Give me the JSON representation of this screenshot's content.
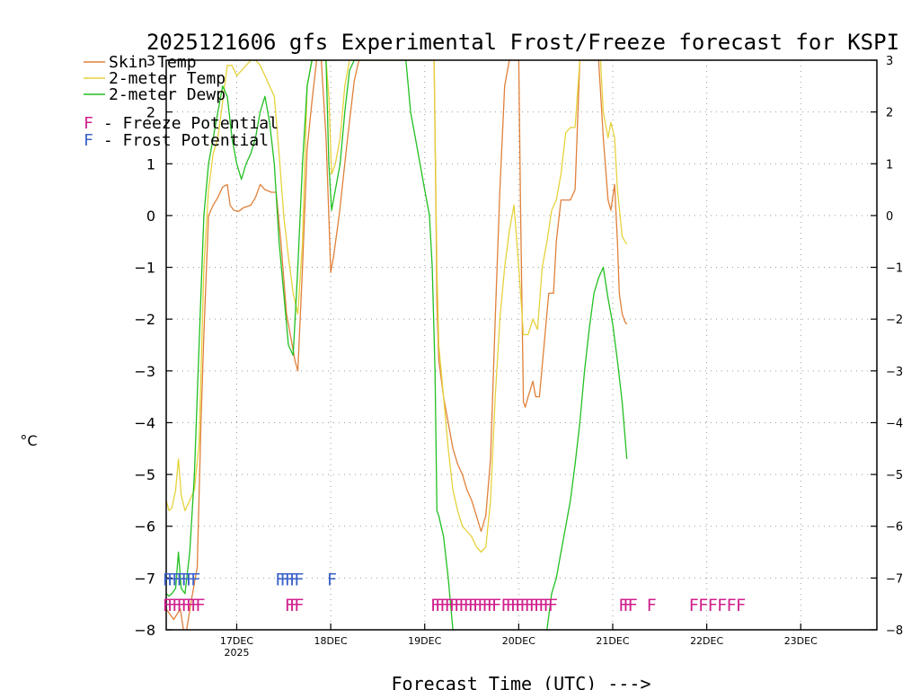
{
  "chart_data": {
    "type": "line",
    "title": "2025121606 gfs Experimental Frost/Freeze forecast for KSPI",
    "xlabel": "Forecast Time (UTC) --->",
    "ylabel": "°C",
    "ylim": [
      -8,
      3
    ],
    "xlim": [
      0,
      7.56
    ],
    "x_unit": "days since 16DEC 06Z",
    "yticks": [
      -8,
      -7,
      -6,
      -5,
      -4,
      -3,
      -2,
      -1,
      0,
      1,
      2,
      3
    ],
    "ytick_labels": [
      "−8",
      "−7",
      "−6",
      "−5",
      "−4",
      "−3",
      "−2",
      "−1",
      "0",
      "1",
      "2",
      "3"
    ],
    "xticks": [
      {
        "x": 0.75,
        "label": "17DEC",
        "sublabel": "2025"
      },
      {
        "x": 1.75,
        "label": "18DEC",
        "sublabel": ""
      },
      {
        "x": 2.75,
        "label": "19DEC",
        "sublabel": ""
      },
      {
        "x": 3.75,
        "label": "20DEC",
        "sublabel": ""
      },
      {
        "x": 4.75,
        "label": "21DEC",
        "sublabel": ""
      },
      {
        "x": 5.75,
        "label": "22DEC",
        "sublabel": ""
      },
      {
        "x": 6.75,
        "label": "23DEC",
        "sublabel": ""
      }
    ],
    "grid": true,
    "legend_position": "top-left",
    "colors": {
      "skin": "#e0803a",
      "temp2m": "#e6d23c",
      "dewp2m": "#22c022",
      "freeze": "#d0208c",
      "frost": "#3a62c8"
    },
    "series": [
      {
        "name": "Skin Temp",
        "key": "skin",
        "points": [
          [
            0.0,
            -7.6
          ],
          [
            0.08,
            -7.8
          ],
          [
            0.15,
            -7.6
          ],
          [
            0.2,
            -8.2
          ],
          [
            0.27,
            -7.4
          ],
          [
            0.33,
            -6.8
          ],
          [
            0.37,
            -4.0
          ],
          [
            0.4,
            -2.3
          ],
          [
            0.45,
            0.0
          ],
          [
            0.5,
            0.2
          ],
          [
            0.55,
            0.35
          ],
          [
            0.6,
            0.55
          ],
          [
            0.65,
            0.6
          ],
          [
            0.68,
            0.2
          ],
          [
            0.72,
            0.1
          ],
          [
            0.77,
            0.08
          ],
          [
            0.82,
            0.15
          ],
          [
            0.9,
            0.2
          ],
          [
            0.95,
            0.35
          ],
          [
            1.0,
            0.6
          ],
          [
            1.05,
            0.5
          ],
          [
            1.12,
            0.45
          ],
          [
            1.17,
            0.45
          ],
          [
            1.22,
            -0.5
          ],
          [
            1.28,
            -1.9
          ],
          [
            1.33,
            -2.4
          ],
          [
            1.37,
            -2.8
          ],
          [
            1.4,
            -3.0
          ],
          [
            1.45,
            -1.0
          ],
          [
            1.5,
            1.3
          ],
          [
            1.55,
            2.2
          ],
          [
            1.6,
            3.0
          ],
          [
            1.65,
            3.0
          ],
          [
            1.7,
            1.5
          ],
          [
            1.73,
            0.0
          ],
          [
            1.75,
            -1.1
          ],
          [
            1.78,
            -0.8
          ],
          [
            1.84,
            0.0
          ],
          [
            1.93,
            1.5
          ],
          [
            2.0,
            2.6
          ],
          [
            2.05,
            3.0
          ],
          [
            2.8,
            3.0
          ],
          [
            2.85,
            3.0
          ],
          [
            2.87,
            0.0
          ],
          [
            2.88,
            -1.7
          ],
          [
            2.9,
            -2.8
          ],
          [
            2.95,
            -3.5
          ],
          [
            3.0,
            -4.0
          ],
          [
            3.05,
            -4.5
          ],
          [
            3.1,
            -4.8
          ],
          [
            3.15,
            -5.0
          ],
          [
            3.2,
            -5.3
          ],
          [
            3.25,
            -5.5
          ],
          [
            3.3,
            -5.8
          ],
          [
            3.35,
            -6.1
          ],
          [
            3.4,
            -5.8
          ],
          [
            3.45,
            -4.7
          ],
          [
            3.5,
            -2.0
          ],
          [
            3.55,
            0.5
          ],
          [
            3.6,
            2.5
          ],
          [
            3.65,
            3.0
          ],
          [
            3.72,
            3.0
          ],
          [
            3.75,
            3.0
          ],
          [
            3.77,
            0.0
          ],
          [
            3.8,
            -3.6
          ],
          [
            3.82,
            -3.7
          ],
          [
            3.85,
            -3.5
          ],
          [
            3.9,
            -3.2
          ],
          [
            3.93,
            -3.5
          ],
          [
            3.97,
            -3.5
          ],
          [
            4.02,
            -2.5
          ],
          [
            4.07,
            -1.5
          ],
          [
            4.12,
            -1.5
          ],
          [
            4.15,
            -0.5
          ],
          [
            4.2,
            0.3
          ],
          [
            4.25,
            0.3
          ],
          [
            4.3,
            0.3
          ],
          [
            4.35,
            0.5
          ],
          [
            4.4,
            3.0
          ],
          [
            4.6,
            3.0
          ],
          [
            4.65,
            1.5
          ],
          [
            4.7,
            0.3
          ],
          [
            4.73,
            0.1
          ],
          [
            4.77,
            0.6
          ],
          [
            4.8,
            -0.5
          ],
          [
            4.82,
            -1.5
          ],
          [
            4.85,
            -1.9
          ],
          [
            4.88,
            -2.05
          ],
          [
            4.9,
            -2.1
          ]
        ]
      },
      {
        "name": "2-meter Temp",
        "key": "temp2m",
        "points": [
          [
            0.0,
            -5.5
          ],
          [
            0.03,
            -5.7
          ],
          [
            0.06,
            -5.65
          ],
          [
            0.1,
            -5.3
          ],
          [
            0.13,
            -4.7
          ],
          [
            0.16,
            -5.4
          ],
          [
            0.2,
            -5.7
          ],
          [
            0.25,
            -5.5
          ],
          [
            0.3,
            -5.3
          ],
          [
            0.35,
            -4.4
          ],
          [
            0.4,
            -1.0
          ],
          [
            0.45,
            0.5
          ],
          [
            0.5,
            1.2
          ],
          [
            0.55,
            1.5
          ],
          [
            0.6,
            2.2
          ],
          [
            0.65,
            2.9
          ],
          [
            0.7,
            2.9
          ],
          [
            0.75,
            2.7
          ],
          [
            0.85,
            2.9
          ],
          [
            0.9,
            3.0
          ],
          [
            0.95,
            3.0
          ],
          [
            1.0,
            2.9
          ],
          [
            1.05,
            2.7
          ],
          [
            1.1,
            2.5
          ],
          [
            1.15,
            2.3
          ],
          [
            1.2,
            1.2
          ],
          [
            1.25,
            0.0
          ],
          [
            1.3,
            -0.8
          ],
          [
            1.35,
            -1.5
          ],
          [
            1.4,
            -1.9
          ],
          [
            1.45,
            -0.5
          ],
          [
            1.5,
            2.5
          ],
          [
            1.55,
            3.0
          ],
          [
            1.7,
            3.0
          ],
          [
            1.73,
            2.3
          ],
          [
            1.76,
            0.8
          ],
          [
            1.8,
            1.0
          ],
          [
            1.85,
            1.5
          ],
          [
            1.9,
            2.5
          ],
          [
            1.95,
            3.0
          ],
          [
            2.85,
            3.0
          ],
          [
            2.88,
            -1.0
          ],
          [
            2.9,
            -2.5
          ],
          [
            2.95,
            -3.5
          ],
          [
            3.0,
            -4.5
          ],
          [
            3.05,
            -5.3
          ],
          [
            3.1,
            -5.7
          ],
          [
            3.15,
            -6.0
          ],
          [
            3.2,
            -6.1
          ],
          [
            3.25,
            -6.2
          ],
          [
            3.3,
            -6.4
          ],
          [
            3.35,
            -6.5
          ],
          [
            3.4,
            -6.4
          ],
          [
            3.45,
            -5.5
          ],
          [
            3.5,
            -3.5
          ],
          [
            3.55,
            -2.0
          ],
          [
            3.6,
            -1.0
          ],
          [
            3.65,
            -0.3
          ],
          [
            3.7,
            0.2
          ],
          [
            3.75,
            -1.0
          ],
          [
            3.8,
            -2.3
          ],
          [
            3.85,
            -2.3
          ],
          [
            3.9,
            -2.0
          ],
          [
            3.95,
            -2.2
          ],
          [
            4.0,
            -1.0
          ],
          [
            4.05,
            -0.5
          ],
          [
            4.1,
            0.1
          ],
          [
            4.15,
            0.3
          ],
          [
            4.2,
            0.8
          ],
          [
            4.25,
            1.6
          ],
          [
            4.3,
            1.7
          ],
          [
            4.35,
            1.7
          ],
          [
            4.4,
            3.0
          ],
          [
            4.62,
            3.0
          ],
          [
            4.65,
            2.0
          ],
          [
            4.7,
            1.5
          ],
          [
            4.73,
            1.8
          ],
          [
            4.77,
            1.5
          ],
          [
            4.8,
            0.5
          ],
          [
            4.85,
            -0.4
          ],
          [
            4.88,
            -0.5
          ],
          [
            4.9,
            -0.55
          ]
        ]
      },
      {
        "name": "2-meter Dewp",
        "key": "dewp2m",
        "points": [
          [
            0.0,
            -7.3
          ],
          [
            0.03,
            -7.35
          ],
          [
            0.06,
            -7.3
          ],
          [
            0.1,
            -7.2
          ],
          [
            0.13,
            -6.5
          ],
          [
            0.16,
            -7.2
          ],
          [
            0.2,
            -7.3
          ],
          [
            0.25,
            -6.5
          ],
          [
            0.3,
            -5.0
          ],
          [
            0.33,
            -3.5
          ],
          [
            0.37,
            -1.5
          ],
          [
            0.4,
            0.0
          ],
          [
            0.45,
            1.0
          ],
          [
            0.5,
            1.5
          ],
          [
            0.55,
            2.0
          ],
          [
            0.6,
            2.5
          ],
          [
            0.65,
            2.3
          ],
          [
            0.7,
            1.5
          ],
          [
            0.75,
            1.0
          ],
          [
            0.8,
            0.7
          ],
          [
            0.85,
            1.0
          ],
          [
            0.9,
            1.2
          ],
          [
            0.95,
            1.5
          ],
          [
            1.0,
            2.0
          ],
          [
            1.05,
            2.3
          ],
          [
            1.1,
            1.8
          ],
          [
            1.15,
            1.0
          ],
          [
            1.2,
            -0.5
          ],
          [
            1.25,
            -1.5
          ],
          [
            1.3,
            -2.5
          ],
          [
            1.35,
            -2.7
          ],
          [
            1.4,
            -1.0
          ],
          [
            1.45,
            1.0
          ],
          [
            1.5,
            2.5
          ],
          [
            1.55,
            3.0
          ],
          [
            1.7,
            3.0
          ],
          [
            1.73,
            1.0
          ],
          [
            1.76,
            0.1
          ],
          [
            1.8,
            0.5
          ],
          [
            1.85,
            1.0
          ],
          [
            1.9,
            2.0
          ],
          [
            1.95,
            2.8
          ],
          [
            2.0,
            3.0
          ],
          [
            2.55,
            3.0
          ],
          [
            2.6,
            2.0
          ],
          [
            2.65,
            1.5
          ],
          [
            2.7,
            1.0
          ],
          [
            2.75,
            0.5
          ],
          [
            2.8,
            0.0
          ],
          [
            2.83,
            -1.0
          ],
          [
            2.86,
            -3.0
          ],
          [
            2.88,
            -5.7
          ],
          [
            2.9,
            -5.8
          ],
          [
            2.95,
            -6.2
          ],
          [
            3.0,
            -7.0
          ],
          [
            3.05,
            -8.0
          ],
          [
            3.1,
            -9.0
          ],
          [
            4.0,
            -9.0
          ],
          [
            4.05,
            -8.0
          ],
          [
            4.1,
            -7.3
          ],
          [
            4.15,
            -7.0
          ],
          [
            4.2,
            -6.5
          ],
          [
            4.25,
            -6.0
          ],
          [
            4.3,
            -5.5
          ],
          [
            4.35,
            -4.8
          ],
          [
            4.4,
            -4.0
          ],
          [
            4.45,
            -3.0
          ],
          [
            4.5,
            -2.2
          ],
          [
            4.55,
            -1.5
          ],
          [
            4.6,
            -1.2
          ],
          [
            4.65,
            -1.0
          ],
          [
            4.7,
            -1.6
          ],
          [
            4.75,
            -2.1
          ],
          [
            4.8,
            -2.8
          ],
          [
            4.85,
            -3.6
          ],
          [
            4.9,
            -4.7
          ]
        ]
      }
    ],
    "legend": [
      {
        "label": "Skin Temp",
        "key": "skin"
      },
      {
        "label": "2-meter Temp",
        "key": "temp2m"
      },
      {
        "label": "2-meter Dewp",
        "key": "dewp2m"
      }
    ],
    "flag_legend": [
      {
        "glyph": "F",
        "label": " - Freeze Potential",
        "key": "freeze"
      },
      {
        "glyph": "F",
        "label": " - Frost Potential",
        "key": "frost"
      }
    ],
    "frost_flags": [
      0.0,
      0.05,
      0.1,
      0.15,
      0.2,
      0.25,
      0.3,
      1.2,
      1.25,
      1.3,
      1.35,
      1.4,
      1.75
    ],
    "freeze_flags": [
      0.0,
      0.05,
      0.1,
      0.15,
      0.2,
      0.25,
      0.3,
      0.35,
      1.3,
      1.35,
      1.4,
      2.85,
      2.9,
      2.95,
      3.0,
      3.05,
      3.1,
      3.15,
      3.2,
      3.25,
      3.3,
      3.35,
      3.4,
      3.45,
      3.5,
      3.6,
      3.65,
      3.7,
      3.75,
      3.8,
      3.85,
      3.9,
      3.95,
      4.0,
      4.05,
      4.1,
      4.85,
      4.9,
      4.95,
      5.15,
      5.6,
      5.7,
      5.8,
      5.9,
      6.0,
      6.1
    ]
  }
}
